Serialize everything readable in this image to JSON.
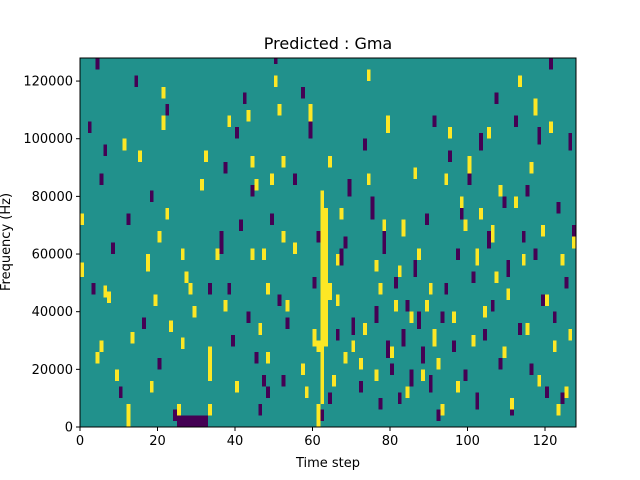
{
  "chart_data": {
    "type": "heatmap",
    "title": "Predicted : Gma",
    "xlabel": "Time step",
    "ylabel": "Frequency (Hz)",
    "xlim": [
      0,
      128
    ],
    "ylim": [
      0,
      128000
    ],
    "xticks": [
      0,
      20,
      40,
      60,
      80,
      100,
      120
    ],
    "yticks": [
      0,
      20000,
      40000,
      60000,
      80000,
      100000,
      120000
    ],
    "colors": {
      "low": "#440154",
      "mid": "#21918c",
      "high": "#fde725"
    },
    "background_level": "mid",
    "bin_height_hz": 1000,
    "high_cells": [
      [
        0,
        52000,
        57000
      ],
      [
        0,
        70000,
        74000
      ],
      [
        4,
        22000,
        26000
      ],
      [
        5,
        26000,
        30000
      ],
      [
        6,
        45000,
        49000
      ],
      [
        7,
        43000,
        47000
      ],
      [
        9,
        16000,
        20000
      ],
      [
        11,
        96000,
        100000
      ],
      [
        12,
        0,
        8000
      ],
      [
        13,
        29000,
        33000
      ],
      [
        15,
        92000,
        96000
      ],
      [
        17,
        54000,
        60000
      ],
      [
        18,
        12000,
        16000
      ],
      [
        19,
        42000,
        46000
      ],
      [
        20,
        64000,
        68000
      ],
      [
        21,
        114000,
        118000
      ],
      [
        21,
        103000,
        108000
      ],
      [
        22,
        72000,
        76000
      ],
      [
        23,
        33000,
        37000
      ],
      [
        25,
        4000,
        8000
      ],
      [
        26,
        27000,
        31000
      ],
      [
        26,
        58000,
        62000
      ],
      [
        27,
        50000,
        54000
      ],
      [
        28,
        46000,
        50000
      ],
      [
        29,
        38000,
        42000
      ],
      [
        31,
        82000,
        86000
      ],
      [
        32,
        92000,
        96000
      ],
      [
        33,
        4000,
        8000
      ],
      [
        33,
        16000,
        28000
      ],
      [
        35,
        58000,
        62000
      ],
      [
        37,
        40000,
        44000
      ],
      [
        38,
        104000,
        108000
      ],
      [
        40,
        12000,
        16000
      ],
      [
        43,
        106000,
        110000
      ],
      [
        44,
        58000,
        62000
      ],
      [
        44,
        90000,
        94000
      ],
      [
        45,
        82000,
        86000
      ],
      [
        46,
        32000,
        36000
      ],
      [
        47,
        58000,
        62000
      ],
      [
        48,
        22000,
        26000
      ],
      [
        48,
        46000,
        50000
      ],
      [
        49,
        84000,
        88000
      ],
      [
        50,
        118000,
        122000
      ],
      [
        51,
        108000,
        112000
      ],
      [
        52,
        64000,
        68000
      ],
      [
        52,
        90000,
        94000
      ],
      [
        53,
        40000,
        44000
      ],
      [
        55,
        60000,
        64000
      ],
      [
        57,
        18000,
        22000
      ],
      [
        58,
        10000,
        14000
      ],
      [
        59,
        106000,
        112000
      ],
      [
        60,
        28000,
        34000
      ],
      [
        61,
        0,
        8000
      ],
      [
        61,
        26000,
        30000
      ],
      [
        62,
        8000,
        82000
      ],
      [
        63,
        28000,
        76000
      ],
      [
        64,
        44000,
        50000
      ],
      [
        64,
        90000,
        94000
      ],
      [
        65,
        14000,
        18000
      ],
      [
        66,
        42000,
        46000
      ],
      [
        66,
        56000,
        60000
      ],
      [
        67,
        72000,
        76000
      ],
      [
        68,
        22000,
        26000
      ],
      [
        70,
        26000,
        30000
      ],
      [
        72,
        20000,
        24000
      ],
      [
        73,
        32000,
        36000
      ],
      [
        74,
        84000,
        88000
      ],
      [
        74,
        120000,
        124000
      ],
      [
        76,
        16000,
        20000
      ],
      [
        76,
        54000,
        58000
      ],
      [
        77,
        46000,
        50000
      ],
      [
        78,
        68000,
        72000
      ],
      [
        79,
        102000,
        108000
      ],
      [
        80,
        24000,
        28000
      ],
      [
        81,
        40000,
        44000
      ],
      [
        82,
        52000,
        56000
      ],
      [
        83,
        66000,
        72000
      ],
      [
        84,
        10000,
        14000
      ],
      [
        85,
        36000,
        40000
      ],
      [
        86,
        86000,
        90000
      ],
      [
        87,
        58000,
        62000
      ],
      [
        88,
        16000,
        20000
      ],
      [
        89,
        40000,
        44000
      ],
      [
        90,
        46000,
        50000
      ],
      [
        91,
        28000,
        34000
      ],
      [
        92,
        20000,
        24000
      ],
      [
        93,
        4000,
        8000
      ],
      [
        94,
        84000,
        88000
      ],
      [
        95,
        100000,
        104000
      ],
      [
        96,
        36000,
        40000
      ],
      [
        97,
        12000,
        16000
      ],
      [
        98,
        76000,
        80000
      ],
      [
        99,
        68000,
        72000
      ],
      [
        100,
        88000,
        94000
      ],
      [
        101,
        28000,
        32000
      ],
      [
        102,
        56000,
        62000
      ],
      [
        103,
        72000,
        76000
      ],
      [
        104,
        38000,
        42000
      ],
      [
        105,
        100000,
        104000
      ],
      [
        106,
        64000,
        70000
      ],
      [
        107,
        50000,
        54000
      ],
      [
        108,
        80000,
        84000
      ],
      [
        109,
        24000,
        28000
      ],
      [
        110,
        44000,
        48000
      ],
      [
        111,
        6000,
        10000
      ],
      [
        112,
        76000,
        80000
      ],
      [
        113,
        118000,
        122000
      ],
      [
        114,
        56000,
        60000
      ],
      [
        115,
        32000,
        36000
      ],
      [
        116,
        88000,
        92000
      ],
      [
        117,
        108000,
        114000
      ],
      [
        118,
        14000,
        18000
      ],
      [
        119,
        66000,
        70000
      ],
      [
        120,
        42000,
        46000
      ],
      [
        121,
        102000,
        106000
      ],
      [
        122,
        26000,
        30000
      ],
      [
        123,
        4000,
        8000
      ],
      [
        124,
        56000,
        60000
      ],
      [
        125,
        10000,
        14000
      ],
      [
        126,
        30000,
        34000
      ],
      [
        127,
        62000,
        66000
      ]
    ],
    "low_cells": [
      [
        2,
        102000,
        106000
      ],
      [
        3,
        46000,
        50000
      ],
      [
        4,
        124000,
        128000
      ],
      [
        5,
        84000,
        88000
      ],
      [
        6,
        94000,
        98000
      ],
      [
        8,
        60000,
        64000
      ],
      [
        10,
        10000,
        14000
      ],
      [
        12,
        70000,
        74000
      ],
      [
        14,
        118000,
        122000
      ],
      [
        16,
        34000,
        38000
      ],
      [
        18,
        78000,
        82000
      ],
      [
        20,
        20000,
        24000
      ],
      [
        22,
        108000,
        112000
      ],
      [
        24,
        2000,
        6000
      ],
      [
        25,
        0,
        4000
      ],
      [
        26,
        0,
        4000
      ],
      [
        27,
        0,
        4000
      ],
      [
        28,
        0,
        4000
      ],
      [
        29,
        0,
        4000
      ],
      [
        30,
        0,
        4000
      ],
      [
        31,
        0,
        4000
      ],
      [
        32,
        0,
        4000
      ],
      [
        33,
        46000,
        50000
      ],
      [
        36,
        60000,
        68000
      ],
      [
        37,
        88000,
        92000
      ],
      [
        38,
        46000,
        50000
      ],
      [
        39,
        28000,
        32000
      ],
      [
        40,
        100000,
        104000
      ],
      [
        41,
        68000,
        72000
      ],
      [
        42,
        112000,
        116000
      ],
      [
        43,
        36000,
        40000
      ],
      [
        44,
        80000,
        84000
      ],
      [
        45,
        22000,
        26000
      ],
      [
        46,
        4000,
        8000
      ],
      [
        47,
        14000,
        18000
      ],
      [
        48,
        10000,
        14000
      ],
      [
        49,
        70000,
        74000
      ],
      [
        50,
        126000,
        128000
      ],
      [
        51,
        42000,
        46000
      ],
      [
        52,
        14000,
        18000
      ],
      [
        53,
        34000,
        38000
      ],
      [
        55,
        84000,
        88000
      ],
      [
        57,
        114000,
        118000
      ],
      [
        59,
        100000,
        110000
      ],
      [
        60,
        48000,
        52000
      ],
      [
        61,
        64000,
        68000
      ],
      [
        62,
        2000,
        6000
      ],
      [
        64,
        8000,
        12000
      ],
      [
        66,
        30000,
        34000
      ],
      [
        67,
        56000,
        62000
      ],
      [
        68,
        62000,
        66000
      ],
      [
        69,
        80000,
        86000
      ],
      [
        70,
        32000,
        38000
      ],
      [
        72,
        12000,
        16000
      ],
      [
        73,
        96000,
        100000
      ],
      [
        75,
        72000,
        80000
      ],
      [
        76,
        36000,
        42000
      ],
      [
        77,
        6000,
        10000
      ],
      [
        78,
        60000,
        70000
      ],
      [
        79,
        24000,
        30000
      ],
      [
        80,
        18000,
        22000
      ],
      [
        81,
        48000,
        52000
      ],
      [
        82,
        8000,
        12000
      ],
      [
        83,
        28000,
        34000
      ],
      [
        84,
        40000,
        44000
      ],
      [
        85,
        14000,
        20000
      ],
      [
        86,
        52000,
        58000
      ],
      [
        87,
        34000,
        40000
      ],
      [
        88,
        22000,
        28000
      ],
      [
        89,
        70000,
        74000
      ],
      [
        90,
        12000,
        18000
      ],
      [
        91,
        104000,
        108000
      ],
      [
        92,
        2000,
        6000
      ],
      [
        93,
        36000,
        40000
      ],
      [
        94,
        46000,
        50000
      ],
      [
        95,
        92000,
        96000
      ],
      [
        96,
        26000,
        30000
      ],
      [
        97,
        58000,
        62000
      ],
      [
        98,
        72000,
        76000
      ],
      [
        99,
        16000,
        20000
      ],
      [
        100,
        84000,
        88000
      ],
      [
        101,
        50000,
        54000
      ],
      [
        102,
        6000,
        12000
      ],
      [
        103,
        96000,
        102000
      ],
      [
        104,
        30000,
        34000
      ],
      [
        105,
        62000,
        68000
      ],
      [
        106,
        40000,
        44000
      ],
      [
        107,
        112000,
        116000
      ],
      [
        108,
        20000,
        24000
      ],
      [
        109,
        76000,
        80000
      ],
      [
        110,
        52000,
        58000
      ],
      [
        111,
        4000,
        8000
      ],
      [
        112,
        104000,
        108000
      ],
      [
        113,
        32000,
        36000
      ],
      [
        114,
        64000,
        68000
      ],
      [
        115,
        80000,
        84000
      ],
      [
        116,
        18000,
        22000
      ],
      [
        117,
        58000,
        62000
      ],
      [
        118,
        98000,
        104000
      ],
      [
        119,
        42000,
        46000
      ],
      [
        120,
        10000,
        14000
      ],
      [
        121,
        124000,
        128000
      ],
      [
        122,
        36000,
        40000
      ],
      [
        123,
        74000,
        78000
      ],
      [
        124,
        8000,
        12000
      ],
      [
        125,
        48000,
        52000
      ],
      [
        126,
        96000,
        102000
      ],
      [
        127,
        66000,
        70000
      ]
    ]
  }
}
